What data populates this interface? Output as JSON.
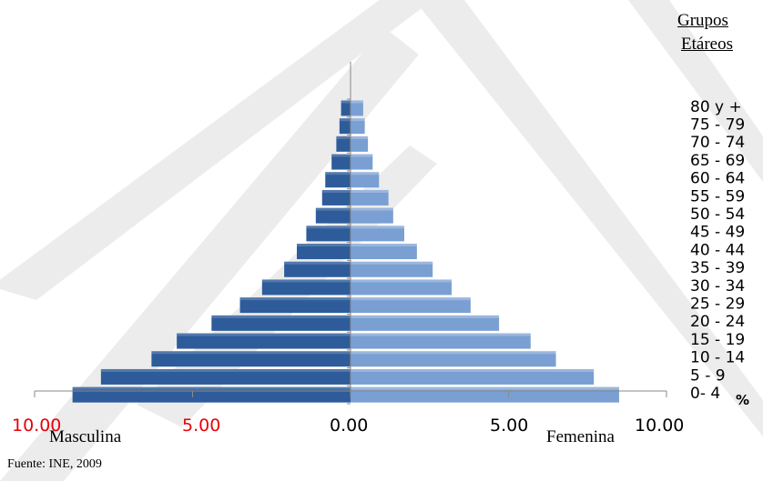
{
  "chart_data": {
    "type": "bar",
    "orientation": "horizontal",
    "layout": "population-pyramid",
    "legend_title_lines": [
      "Grupos",
      "Etáreos"
    ],
    "categories": [
      "0- 4",
      "5 - 9",
      "10 - 14",
      "15 - 19",
      "20 - 24",
      "25 - 29",
      "30 - 34",
      "35 - 39",
      "40 - 44",
      "45 - 49",
      "50 - 54",
      "55 - 59",
      "60 - 64",
      "65 - 69",
      "70 - 74",
      "75 - 79",
      "80 y +"
    ],
    "series": [
      {
        "name": "Masculina",
        "color": "#2e5c9a",
        "values": [
          8.8,
          7.9,
          6.3,
          5.5,
          4.4,
          3.5,
          2.8,
          2.1,
          1.7,
          1.4,
          1.1,
          0.9,
          0.8,
          0.6,
          0.45,
          0.35,
          0.3
        ]
      },
      {
        "name": "Femenina",
        "color": "#7a9fd2",
        "values": [
          8.5,
          7.7,
          6.5,
          5.7,
          4.7,
          3.8,
          3.2,
          2.6,
          2.1,
          1.7,
          1.35,
          1.2,
          0.9,
          0.7,
          0.55,
          0.45,
          0.4
        ]
      }
    ],
    "x_ticks": [
      {
        "label": "10.00",
        "value": -10,
        "color": "#e8000b"
      },
      {
        "label": "5.00",
        "value": -5,
        "color": "#e8000b"
      },
      {
        "label": "0.00",
        "value": 0,
        "color": "#000000"
      },
      {
        "label": "5.00",
        "value": 5,
        "color": "#000000"
      },
      {
        "label": "10.00",
        "value": 10,
        "color": "#000000"
      }
    ],
    "x_axis_unit": "%",
    "xlim": [
      -10,
      10
    ]
  },
  "source_note": "Fuente: INE, 2009"
}
